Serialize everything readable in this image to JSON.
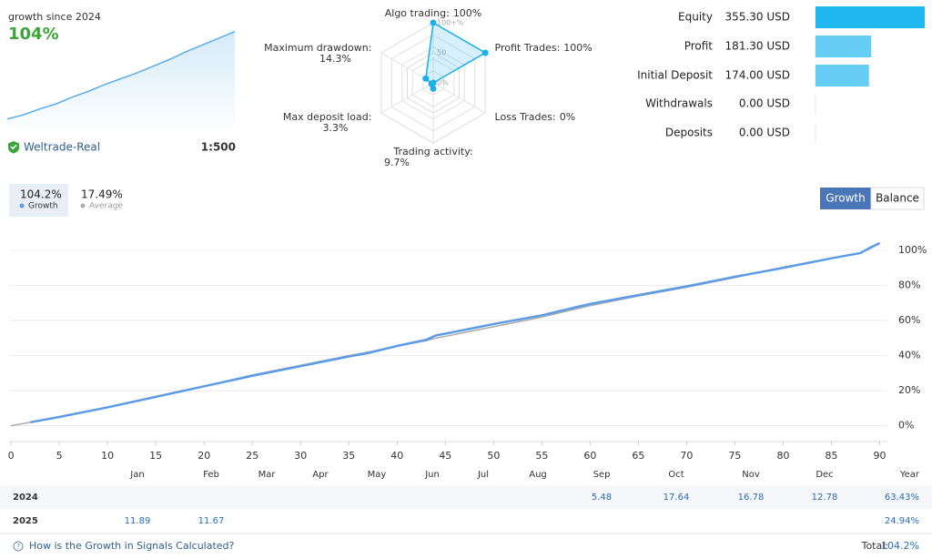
{
  "header": {
    "title": "growth since 2024",
    "growth": "104%",
    "account": "Weltrade-Real",
    "leverage": "1:500"
  },
  "chart_data": [
    {
      "type": "area",
      "values": [
        0,
        5,
        12,
        18,
        26,
        33,
        41,
        48,
        55,
        63,
        71,
        80,
        88,
        96,
        104
      ],
      "ylim": [
        -10,
        109
      ],
      "color": "#5aaee8"
    },
    {
      "type": "radar",
      "categories": [
        "Algo trading:",
        "Profit Trades:",
        "Loss Trades:",
        "Trading activity:",
        "Max deposit load:",
        "Maximum drawdown:"
      ],
      "values": [
        100,
        100,
        0,
        9.7,
        3.3,
        14.3
      ],
      "value_labels": [
        "100%",
        "100%",
        "0%",
        "9.7%",
        "3.3%",
        "14.3%"
      ],
      "rlim": [
        0,
        100
      ],
      "rticks": [
        {
          "value": 0,
          "label": "0%"
        },
        {
          "value": 50,
          "label": "50"
        },
        {
          "value": 100,
          "label": "100+%"
        }
      ],
      "color": "#1ab0ec"
    },
    {
      "type": "hbar",
      "categories": [
        "Equity",
        "Profit",
        "Initial Deposit",
        "Withdrawals",
        "Deposits"
      ],
      "values": [
        355.3,
        181.3,
        174,
        0,
        0
      ],
      "value_labels": [
        "355.30 USD",
        "181.30 USD",
        "174.00 USD",
        "0.00 USD",
        "0.00 USD"
      ],
      "xlim": [
        0,
        355.3
      ],
      "colors": [
        "#1fb8f0",
        "#66cdf5",
        "#66cdf5",
        "#66cdf5",
        "#66cdf5"
      ]
    },
    {
      "type": "line",
      "x": [
        0,
        2,
        5,
        10,
        15,
        20,
        25,
        30,
        35,
        37,
        40,
        43,
        44,
        45,
        50,
        55,
        60,
        65,
        70,
        75,
        80,
        85,
        88,
        89,
        90
      ],
      "series": [
        {
          "name": "Growth",
          "color": "#5c9ce6",
          "values": [
            null,
            2,
            5,
            10.5,
            16.5,
            22.5,
            28.5,
            34,
            39.5,
            41.5,
            45.5,
            49,
            51.5,
            52.5,
            58,
            63,
            69.5,
            74.5,
            79.5,
            85,
            90,
            95.5,
            98.5,
            101.5,
            104.2
          ]
        },
        {
          "name": "Average",
          "color": "#aaaaaa",
          "values": [
            0,
            2,
            5,
            10.5,
            16.5,
            22.5,
            29,
            34.5,
            40,
            42,
            45.5,
            48.5,
            50,
            51,
            56.5,
            62,
            68.5,
            74,
            79,
            84.5,
            90.5,
            95.5,
            98.5,
            101,
            104
          ]
        }
      ],
      "xlim": [
        -0.2,
        90.8
      ],
      "ylim": [
        -9,
        113
      ],
      "xticks": [
        0,
        5,
        10,
        15,
        20,
        25,
        30,
        35,
        40,
        45,
        50,
        55,
        60,
        65,
        70,
        75,
        80,
        85,
        90
      ],
      "yticks": [
        {
          "value": 0,
          "label": "0%"
        },
        {
          "value": 20,
          "label": "20%"
        },
        {
          "value": 40,
          "label": "40%"
        },
        {
          "value": 60,
          "label": "60%"
        },
        {
          "value": 80,
          "label": "80%"
        },
        {
          "value": 100,
          "label": "100%"
        }
      ],
      "grid": true
    }
  ],
  "tabs": [
    {
      "value": "104.2%"
    },
    {
      "value": "17.49%"
    }
  ],
  "buttons": [
    "Growth",
    "Balance"
  ],
  "table": {
    "header": [
      "Jan",
      "Feb",
      "Mar",
      "Apr",
      "May",
      "Jun",
      "Jul",
      "Aug",
      "Sep",
      "Oct",
      "Nov",
      "Dec",
      "Year"
    ],
    "rows": [
      {
        "year": "2024",
        "cells": [
          null,
          null,
          null,
          null,
          null,
          null,
          null,
          null,
          "5.48",
          "17.64",
          "16.78",
          "12.78",
          "63.43%"
        ]
      },
      {
        "year": "2025",
        "cells": [
          "11.89",
          "11.67",
          null,
          null,
          null,
          null,
          null,
          null,
          null,
          null,
          null,
          null,
          "24.94%"
        ]
      }
    ]
  },
  "footer": {
    "link": "How is the Growth in Signals Calculated?",
    "total_label": "Total:",
    "total": "104.2%"
  }
}
